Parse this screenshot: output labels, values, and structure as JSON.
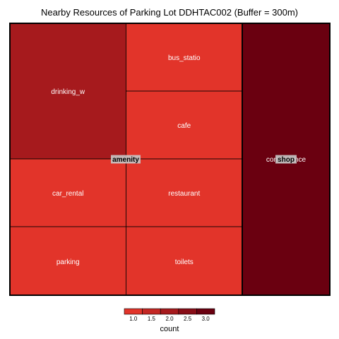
{
  "chart_data": {
    "type": "treemap",
    "title": "Nearby Resources of Parking Lot DDHTAC002 (Buffer = 300m)",
    "groups": [
      {
        "name": "amenity",
        "items": [
          {
            "label": "drinking_w",
            "value": 2
          },
          {
            "label": "bus_statio",
            "value": 1
          },
          {
            "label": "cafe",
            "value": 1
          },
          {
            "label": "car_rental",
            "value": 1
          },
          {
            "label": "restaurant",
            "value": 1
          },
          {
            "label": "parking",
            "value": 1
          },
          {
            "label": "toilets",
            "value": 1
          }
        ]
      },
      {
        "name": "shop",
        "items": [
          {
            "label": "convenience",
            "value": 3
          }
        ]
      }
    ],
    "legend": {
      "title": "count",
      "ticks": [
        "1.0",
        "1.5",
        "2.0",
        "2.5",
        "3.0"
      ],
      "min": 1,
      "max": 3,
      "color_low": "#e2342a",
      "color_high": "#6a0010"
    }
  }
}
